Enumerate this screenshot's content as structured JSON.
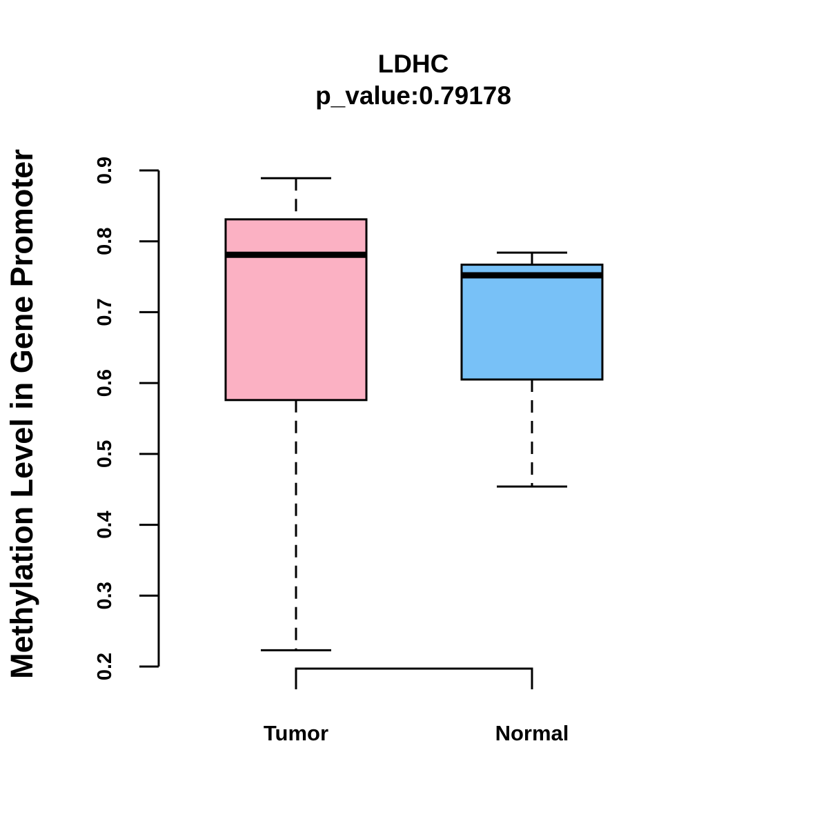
{
  "chart_data": {
    "type": "boxplot",
    "title": "LDHC",
    "subtitle": "p_value:0.79178",
    "xlabel": "",
    "ylabel": "Methylation Level in Gene Promoter",
    "categories": [
      "Tumor",
      "Normal"
    ],
    "ylim": [
      0.2,
      0.9
    ],
    "yticks": [
      "0.2",
      "0.3",
      "0.4",
      "0.5",
      "0.6",
      "0.7",
      "0.8",
      "0.9"
    ],
    "boxes": [
      {
        "name": "Tumor",
        "whisker_low": 0.223,
        "q1": 0.576,
        "median": 0.781,
        "q3": 0.831,
        "whisker_high": 0.889,
        "color": "#FBB1C3"
      },
      {
        "name": "Normal",
        "whisker_low": 0.454,
        "q1": 0.605,
        "median": 0.752,
        "q3": 0.767,
        "whisker_high": 0.784,
        "color": "#78C1F7"
      }
    ],
    "comparison_bracket": {
      "from": "Tumor",
      "to": "Normal"
    },
    "grid": false,
    "legend": "none"
  }
}
